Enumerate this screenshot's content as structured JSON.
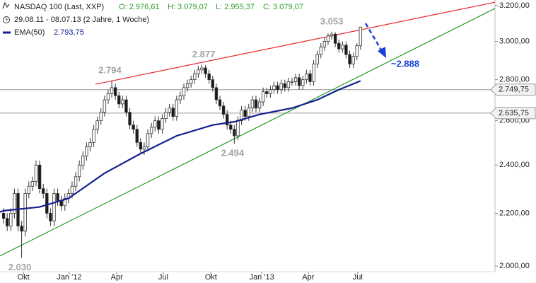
{
  "chart_data": {
    "type": "candlestick",
    "header": {
      "title": "NASDAQ 100 (Last, XXP)",
      "open": "O: 2.976,61",
      "high": "H: 3.079,07",
      "low": "L: 2.955,37",
      "close": "C: 3.079,07",
      "period": "29.08.11 - 08.07.13 (2 Jahre, 1 Woche)"
    },
    "log_scale": true,
    "xlim": [
      -1,
      136.3
    ],
    "xticks": [
      {
        "value": 5.5,
        "label": "Okt"
      },
      {
        "value": 18.2,
        "label": "Jan '12"
      },
      {
        "value": 31.4,
        "label": "Apr"
      },
      {
        "value": 44.3,
        "label": "Jul"
      },
      {
        "value": 57.5,
        "label": "Okt"
      },
      {
        "value": 71.6,
        "label": "Jan '13"
      },
      {
        "value": 84.5,
        "label": "Apr"
      },
      {
        "value": 98.2,
        "label": "Jul"
      }
    ],
    "ylim": [
      1990,
      3233
    ],
    "yticks": [
      {
        "value": 2000,
        "label": "2.000,00"
      },
      {
        "value": 2200,
        "label": "2.200,00"
      },
      {
        "value": 2400,
        "label": "2.400,00"
      },
      {
        "value": 2600,
        "label": "2.600,00"
      },
      {
        "value": 2800,
        "label": "2.800,00"
      },
      {
        "value": 3000,
        "label": "3.000,00"
      },
      {
        "value": 3200,
        "label": "3.200,00"
      }
    ],
    "up_color": "#ffffff",
    "down_color": "#1a1a1a",
    "edge_color": "#333333",
    "open": [
      2200,
      2180,
      2150,
      2200,
      2280,
      2150,
      2130,
      2280,
      2310,
      2330,
      2400,
      2300,
      2280,
      2200,
      2170,
      2280,
      2250,
      2230,
      2260,
      2280,
      2310,
      2350,
      2400,
      2440,
      2480,
      2500,
      2560,
      2600,
      2640,
      2700,
      2730,
      2760,
      2720,
      2680,
      2700,
      2640,
      2580,
      2560,
      2500,
      2470,
      2480,
      2540,
      2570,
      2600,
      2560,
      2610,
      2640,
      2660,
      2620,
      2700,
      2720,
      2760,
      2780,
      2800,
      2830,
      2850,
      2860,
      2830,
      2800,
      2760,
      2700,
      2670,
      2630,
      2580,
      2560,
      2530,
      2600,
      2650,
      2620,
      2660,
      2700,
      2660,
      2690,
      2740,
      2730,
      2750,
      2770,
      2750,
      2780,
      2760,
      2790,
      2790,
      2810,
      2770,
      2800,
      2830,
      2790,
      2880,
      2930,
      2970,
      3000,
      3030,
      3040,
      2990,
      2960,
      2980,
      2930,
      2880,
      2920,
      2976.61
    ],
    "high": [
      2220,
      2200,
      2220,
      2300,
      2300,
      2170,
      2300,
      2330,
      2350,
      2420,
      2420,
      2320,
      2300,
      2220,
      2300,
      2300,
      2270,
      2280,
      2300,
      2330,
      2370,
      2420,
      2460,
      2500,
      2520,
      2580,
      2620,
      2660,
      2720,
      2750,
      2794,
      2780,
      2740,
      2720,
      2720,
      2660,
      2600,
      2580,
      2520,
      2500,
      2560,
      2590,
      2620,
      2620,
      2630,
      2660,
      2680,
      2680,
      2720,
      2740,
      2780,
      2800,
      2820,
      2850,
      2870,
      2877,
      2875,
      2850,
      2820,
      2780,
      2720,
      2690,
      2650,
      2600,
      2580,
      2620,
      2670,
      2670,
      2680,
      2720,
      2720,
      2710,
      2760,
      2760,
      2770,
      2790,
      2790,
      2800,
      2800,
      2810,
      2810,
      2830,
      2830,
      2820,
      2850,
      2850,
      2900,
      2950,
      2990,
      3020,
      3045,
      3053,
      3050,
      3010,
      3000,
      3000,
      2950,
      2940,
      2990,
      3079.07
    ],
    "low": [
      2160,
      2130,
      2130,
      2180,
      2130,
      2030,
      2110,
      2260,
      2290,
      2310,
      2280,
      2260,
      2180,
      2150,
      2150,
      2230,
      2210,
      2210,
      2240,
      2260,
      2290,
      2330,
      2380,
      2420,
      2460,
      2480,
      2540,
      2580,
      2620,
      2680,
      2710,
      2700,
      2660,
      2660,
      2620,
      2560,
      2540,
      2480,
      2450,
      2445,
      2460,
      2520,
      2550,
      2540,
      2540,
      2590,
      2620,
      2600,
      2600,
      2680,
      2700,
      2740,
      2760,
      2780,
      2810,
      2830,
      2810,
      2780,
      2740,
      2680,
      2650,
      2610,
      2560,
      2540,
      2494,
      2510,
      2580,
      2600,
      2600,
      2640,
      2640,
      2640,
      2670,
      2710,
      2710,
      2730,
      2730,
      2730,
      2740,
      2740,
      2770,
      2770,
      2750,
      2750,
      2780,
      2770,
      2770,
      2860,
      2910,
      2950,
      2980,
      3010,
      2970,
      2940,
      2940,
      2910,
      2860,
      2860,
      2900,
      2955.37
    ],
    "close": [
      2180,
      2150,
      2200,
      2280,
      2150,
      2130,
      2280,
      2310,
      2330,
      2400,
      2300,
      2280,
      2200,
      2170,
      2280,
      2250,
      2230,
      2260,
      2280,
      2310,
      2350,
      2400,
      2440,
      2480,
      2500,
      2560,
      2600,
      2640,
      2700,
      2730,
      2760,
      2720,
      2680,
      2700,
      2640,
      2580,
      2560,
      2500,
      2470,
      2480,
      2540,
      2570,
      2600,
      2560,
      2610,
      2640,
      2660,
      2620,
      2700,
      2720,
      2760,
      2780,
      2800,
      2830,
      2850,
      2860,
      2830,
      2800,
      2760,
      2700,
      2670,
      2630,
      2580,
      2560,
      2530,
      2600,
      2650,
      2620,
      2660,
      2700,
      2660,
      2690,
      2740,
      2730,
      2750,
      2770,
      2750,
      2780,
      2760,
      2790,
      2790,
      2810,
      2770,
      2800,
      2830,
      2790,
      2880,
      2930,
      2970,
      3000,
      3030,
      3040,
      2990,
      2960,
      2980,
      2930,
      2880,
      2920,
      2976.61,
      3079.07
    ],
    "ema": {
      "name": "EMA(50)",
      "legend_value": "2.793,75",
      "color": "#14218f",
      "x": [
        -1,
        0,
        10,
        18,
        28,
        38,
        48,
        58,
        64,
        71,
        80,
        87,
        93,
        99
      ],
      "values": [
        2205,
        2210,
        2225,
        2260,
        2365,
        2450,
        2530,
        2580,
        2595,
        2630,
        2660,
        2700,
        2750,
        2793.75
      ]
    },
    "trendlines": [
      {
        "color": "#e8262a",
        "x": [
          25.5,
          136.3
        ],
        "values": [
          2777,
          3220
        ]
      },
      {
        "color": "#2e9a2e",
        "x": [
          -1,
          136.3
        ],
        "values": [
          2037,
          3184
        ]
      }
    ],
    "levels": [
      {
        "value": 2749.75,
        "label": "2.749,75"
      },
      {
        "value": 2635.75,
        "label": "2.635,75"
      }
    ],
    "annotations": [
      {
        "text": "2.030",
        "x": 4.5,
        "y": 2030,
        "pos": "below"
      },
      {
        "text": "2.794",
        "x": 29.5,
        "y": 2794,
        "pos": "above"
      },
      {
        "text": "2.877",
        "x": 55.5,
        "y": 2877,
        "pos": "above"
      },
      {
        "text": "2.494",
        "x": 63.5,
        "y": 2494,
        "pos": "below"
      },
      {
        "text": "3.053",
        "x": 91,
        "y": 3053,
        "pos": "above"
      }
    ],
    "forecast": {
      "label": "~2.888",
      "color": "#1a3fd6"
    }
  }
}
